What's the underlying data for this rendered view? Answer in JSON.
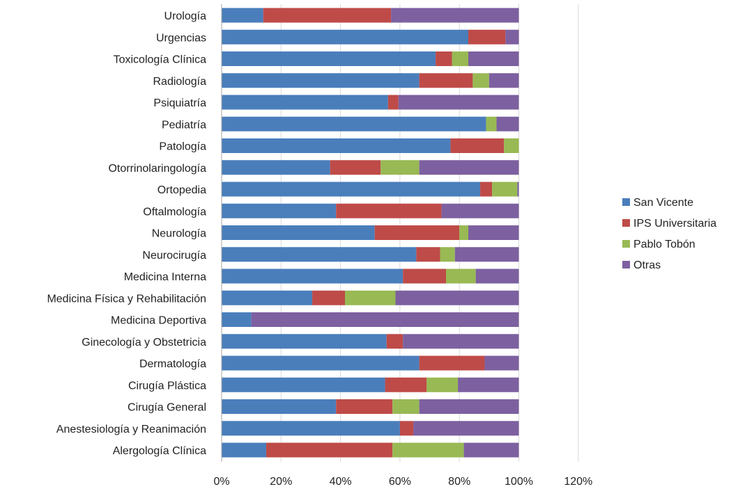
{
  "chart_data": {
    "type": "bar",
    "orientation": "horizontal",
    "stacked": true,
    "categories": [
      "Urología",
      "Urgencias",
      "Toxicología Clínica",
      "Radiología",
      "Psiquiatría",
      "Pediatría",
      "Patología",
      "Otorrinolaringología",
      "Ortopedia",
      "Oftalmología",
      "Neurología",
      "Neurocirugía",
      "Medicina Interna",
      "Medicina Física y Rehabilitación",
      "Medicina Deportiva",
      "Ginecología y Obstetricia",
      "Dermatología",
      "Cirugía Plástica",
      "Cirugía General",
      "Anestesiología y Reanimación",
      "Alergología Clínica"
    ],
    "series": [
      {
        "name": "San Vicente",
        "color": "#4A7EBB",
        "values": [
          14,
          83,
          72,
          66.5,
          56,
          89,
          77,
          36.5,
          87,
          38.5,
          51.5,
          65.5,
          61,
          30.5,
          10,
          55.5,
          66.5,
          55,
          38.5,
          60,
          15
        ]
      },
      {
        "name": "IPS Universitaria",
        "color": "#BE4B48",
        "values": [
          43,
          12.5,
          5.5,
          18,
          3.5,
          0,
          18,
          17,
          4,
          35.5,
          28.5,
          8,
          14.5,
          11,
          0,
          5.5,
          22,
          14,
          19,
          4.5,
          42.5
        ]
      },
      {
        "name": "Pablo Tobón",
        "color": "#98B954",
        "values": [
          0,
          0,
          5.5,
          5.5,
          0,
          3.5,
          5,
          13,
          8.5,
          0,
          3,
          5,
          10,
          17,
          0,
          0,
          0,
          10.5,
          9,
          0,
          24
        ]
      },
      {
        "name": "Otras",
        "color": "#7D60A0",
        "values": [
          43,
          4.5,
          17,
          10,
          40.5,
          7.5,
          0,
          33.5,
          0.5,
          26,
          17,
          21.5,
          14.5,
          41.5,
          90,
          39,
          11.5,
          20.5,
          33.5,
          35.5,
          18.5
        ]
      }
    ],
    "x_tick_labels": [
      "0%",
      "20%",
      "40%",
      "60%",
      "80%",
      "100%",
      "120%"
    ],
    "xlim": [
      0,
      120
    ],
    "grid": "vertical major gridlines",
    "legend_position": "right"
  }
}
